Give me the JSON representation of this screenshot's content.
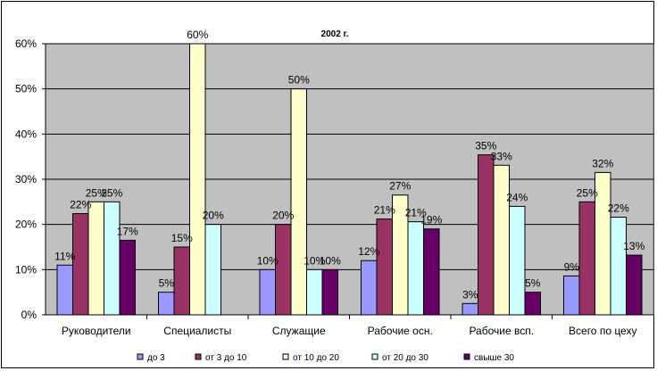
{
  "chart_data": {
    "type": "bar",
    "title": "2002 г.",
    "categories": [
      "Руководители",
      "Специалисты",
      "Служащие",
      "Рабочие осн.",
      "Рабочие всп.",
      "Всего по цеху"
    ],
    "yticks": [
      "0%",
      "10%",
      "20%",
      "30%",
      "40%",
      "50%",
      "60%"
    ],
    "ylim": [
      0,
      60
    ],
    "grid": true,
    "legend_position": "bottom",
    "series": [
      {
        "name": "до 3",
        "color": "#9999FF",
        "values": [
          11,
          5,
          10,
          12,
          2.5,
          8.6
        ],
        "labels": [
          "11%",
          "5%",
          "10%",
          "12%",
          "3%",
          "9%"
        ]
      },
      {
        "name": "от 3 до 10",
        "color": "#993366",
        "values": [
          22.4,
          15,
          20,
          21.2,
          35.4,
          25
        ],
        "labels": [
          "22%",
          "15%",
          "20%",
          "21%",
          "35%",
          "25%"
        ]
      },
      {
        "name": "от 10 до 20",
        "color": "#FFFFCC",
        "values": [
          25,
          60,
          50,
          26.5,
          33.1,
          31.5
        ],
        "labels": [
          "25%",
          "60%",
          "50%",
          "27%",
          "33%",
          "32%"
        ]
      },
      {
        "name": "от 20 до 30",
        "color": "#CCFFFF",
        "values": [
          25,
          20,
          10,
          20.6,
          24,
          21.6
        ],
        "labels": [
          "25%",
          "20%",
          "10%",
          "21%",
          "24%",
          "22%"
        ]
      },
      {
        "name": "свыше 30",
        "color": "#660066",
        "values": [
          16.5,
          null,
          10,
          19,
          5,
          13.2
        ],
        "labels": [
          "17%",
          "",
          "10%",
          "19%",
          "5%",
          "13%"
        ]
      }
    ]
  }
}
